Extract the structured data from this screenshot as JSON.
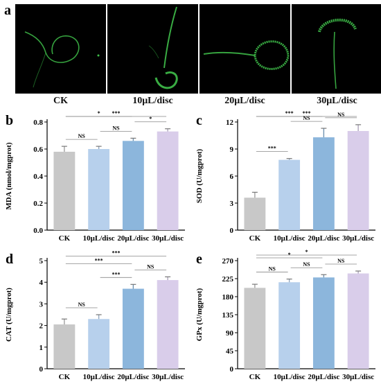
{
  "panel_a": {
    "letter": "a",
    "images": [
      {
        "label": "CK"
      },
      {
        "label": "10μL/disc"
      },
      {
        "label": "20μL/disc"
      },
      {
        "label": "30μL/disc"
      }
    ]
  },
  "colors": {
    "bar_colors": [
      "#c8c8c8",
      "#b7d0ec",
      "#8cb6dc",
      "#d9cdea"
    ],
    "fluorescence": "#3fbf4a"
  },
  "chart_data": [
    {
      "letter": "b",
      "type": "bar",
      "categories": [
        "CK",
        "10μL/disc",
        "20μL/disc",
        "30μL/disc"
      ],
      "values": [
        0.58,
        0.6,
        0.66,
        0.73
      ],
      "errors": [
        0.04,
        0.02,
        0.02,
        0.02
      ],
      "ylabel": "MDA (nmol/mgprot)",
      "ylim": [
        0.0,
        0.8
      ],
      "yticks": [
        "0.0",
        "0.2",
        "0.4",
        "0.6",
        "0.8"
      ],
      "significance": [
        {
          "from": 0,
          "to": 3,
          "label": "***"
        },
        {
          "from": 0,
          "to": 2,
          "label": "*"
        },
        {
          "from": 2,
          "to": 3,
          "label": "*"
        },
        {
          "from": 0,
          "to": 1,
          "label": "NS"
        },
        {
          "from": 1,
          "to": 2,
          "label": "NS"
        }
      ]
    },
    {
      "letter": "c",
      "type": "bar",
      "categories": [
        "CK",
        "10μL/disc",
        "20μL/disc",
        "30μL/disc"
      ],
      "values": [
        3.6,
        7.8,
        10.3,
        11.0
      ],
      "errors": [
        0.6,
        0.15,
        1.0,
        0.7
      ],
      "ylabel": "SOD (U/mgprot)",
      "ylim": [
        0,
        12
      ],
      "yticks": [
        "0",
        "3",
        "6",
        "9",
        "12"
      ],
      "significance": [
        {
          "from": 0,
          "to": 3,
          "label": "***"
        },
        {
          "from": 0,
          "to": 2,
          "label": "***"
        },
        {
          "from": 0,
          "to": 1,
          "label": "***"
        },
        {
          "from": 1,
          "to": 2,
          "label": "NS"
        },
        {
          "from": 2,
          "to": 3,
          "label": "NS"
        }
      ]
    },
    {
      "letter": "d",
      "type": "bar",
      "categories": [
        "CK",
        "10μL/disc",
        "20μL/disc",
        "30μL/disc"
      ],
      "values": [
        2.05,
        2.3,
        3.7,
        4.1
      ],
      "errors": [
        0.25,
        0.2,
        0.2,
        0.15
      ],
      "ylabel": "CAT (U/mgprot)",
      "ylim": [
        0,
        5
      ],
      "yticks": [
        "0",
        "1",
        "2",
        "3",
        "4",
        "5"
      ],
      "significance": [
        {
          "from": 0,
          "to": 3,
          "label": "***"
        },
        {
          "from": 0,
          "to": 2,
          "label": "***"
        },
        {
          "from": 1,
          "to": 2,
          "label": "***"
        },
        {
          "from": 2,
          "to": 3,
          "label": "NS"
        },
        {
          "from": 0,
          "to": 1,
          "label": "NS"
        }
      ]
    },
    {
      "letter": "e",
      "type": "bar",
      "categories": [
        "CK",
        "10μL/disc",
        "20μL/disc",
        "30μL/disc"
      ],
      "values": [
        202,
        216,
        228,
        238
      ],
      "errors": [
        9,
        8,
        7,
        6
      ],
      "ylabel": "GPx (U/mgprot)",
      "ylim": [
        0,
        270
      ],
      "yticks": [
        "0",
        "45",
        "90",
        "135",
        "180",
        "225",
        "270"
      ],
      "significance": [
        {
          "from": 0,
          "to": 3,
          "label": "*"
        },
        {
          "from": 0,
          "to": 2,
          "label": "*"
        },
        {
          "from": 0,
          "to": 1,
          "label": "NS"
        },
        {
          "from": 1,
          "to": 2,
          "label": "NS"
        },
        {
          "from": 2,
          "to": 3,
          "label": "NS"
        }
      ]
    }
  ]
}
